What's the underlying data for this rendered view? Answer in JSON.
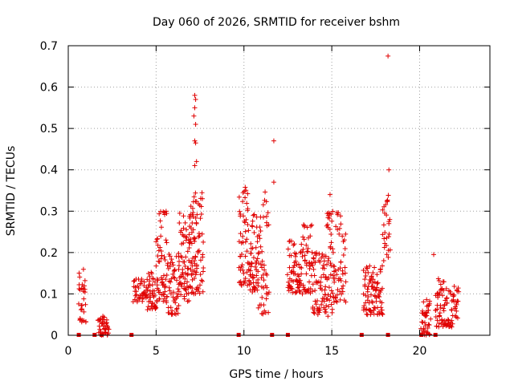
{
  "chart_data": {
    "type": "scatter",
    "title": "Day 060 of 2026, SRMTID for receiver bshm",
    "xlabel": "GPS time / hours",
    "ylabel": "SRMTID / TECUs",
    "xlim": [
      0,
      24
    ],
    "ylim": [
      0,
      0.7
    ],
    "xticks": [
      0,
      5,
      10,
      15,
      20
    ],
    "yticks": [
      0,
      0.1,
      0.2,
      0.3,
      0.4,
      0.5,
      0.6,
      0.7
    ],
    "xtick_labels": [
      "0",
      "5",
      "10",
      "15",
      "20"
    ],
    "ytick_labels": [
      "0",
      "0.1",
      "0.2",
      "0.3",
      "0.4",
      "0.5",
      "0.6",
      "0.7"
    ],
    "grid": true,
    "marker": "+",
    "marker_color": "#e00000",
    "zero_markers_x": [
      0.6,
      1.5,
      1.9,
      3.6,
      9.7,
      11.6,
      12.5,
      16.7,
      18.2,
      20.1,
      20.9
    ],
    "clusters": [
      {
        "x_start": 0.6,
        "x_end": 1.0,
        "y_min": 0.03,
        "y_max": 0.17,
        "count": 30
      },
      {
        "x_start": 1.7,
        "x_end": 2.3,
        "y_min": 0.0,
        "y_max": 0.05,
        "count": 40
      },
      {
        "x_start": 3.7,
        "x_end": 4.5,
        "y_min": 0.08,
        "y_max": 0.14,
        "count": 40
      },
      {
        "x_start": 4.5,
        "x_end": 5.0,
        "y_min": 0.06,
        "y_max": 0.16,
        "count": 40
      },
      {
        "x_start": 5.0,
        "x_end": 5.6,
        "y_min": 0.08,
        "y_max": 0.3,
        "count": 55
      },
      {
        "x_start": 5.6,
        "x_end": 6.3,
        "y_min": 0.05,
        "y_max": 0.2,
        "count": 55
      },
      {
        "x_start": 6.3,
        "x_end": 6.9,
        "y_min": 0.08,
        "y_max": 0.3,
        "count": 60
      },
      {
        "x_start": 6.9,
        "x_end": 7.3,
        "y_min": 0.1,
        "y_max": 0.35,
        "count": 55
      },
      {
        "x_start": 7.3,
        "x_end": 7.7,
        "y_min": 0.1,
        "y_max": 0.35,
        "count": 35
      },
      {
        "x_start": 9.7,
        "x_end": 10.3,
        "y_min": 0.12,
        "y_max": 0.38,
        "count": 55
      },
      {
        "x_start": 10.3,
        "x_end": 10.8,
        "y_min": 0.1,
        "y_max": 0.3,
        "count": 50
      },
      {
        "x_start": 10.8,
        "x_end": 11.4,
        "y_min": 0.05,
        "y_max": 0.35,
        "count": 50
      },
      {
        "x_start": 12.5,
        "x_end": 13.2,
        "y_min": 0.1,
        "y_max": 0.23,
        "count": 55
      },
      {
        "x_start": 13.2,
        "x_end": 13.9,
        "y_min": 0.1,
        "y_max": 0.28,
        "count": 55
      },
      {
        "x_start": 13.9,
        "x_end": 14.6,
        "y_min": 0.05,
        "y_max": 0.2,
        "count": 55
      },
      {
        "x_start": 14.6,
        "x_end": 15.1,
        "y_min": 0.04,
        "y_max": 0.3,
        "count": 55
      },
      {
        "x_start": 15.1,
        "x_end": 15.8,
        "y_min": 0.08,
        "y_max": 0.3,
        "count": 50
      },
      {
        "x_start": 16.8,
        "x_end": 17.4,
        "y_min": 0.05,
        "y_max": 0.17,
        "count": 50
      },
      {
        "x_start": 17.4,
        "x_end": 17.9,
        "y_min": 0.05,
        "y_max": 0.17,
        "count": 40
      },
      {
        "x_start": 17.9,
        "x_end": 18.3,
        "y_min": 0.18,
        "y_max": 0.35,
        "count": 25
      },
      {
        "x_start": 20.1,
        "x_end": 20.6,
        "y_min": 0.0,
        "y_max": 0.09,
        "count": 40
      },
      {
        "x_start": 20.9,
        "x_end": 21.4,
        "y_min": 0.02,
        "y_max": 0.14,
        "count": 40
      },
      {
        "x_start": 21.4,
        "x_end": 22.2,
        "y_min": 0.02,
        "y_max": 0.12,
        "count": 55
      }
    ],
    "outliers": [
      {
        "x": 7.2,
        "y": 0.58
      },
      {
        "x": 7.25,
        "y": 0.57
      },
      {
        "x": 7.2,
        "y": 0.55
      },
      {
        "x": 7.15,
        "y": 0.53
      },
      {
        "x": 7.25,
        "y": 0.51
      },
      {
        "x": 7.2,
        "y": 0.47
      },
      {
        "x": 7.25,
        "y": 0.465
      },
      {
        "x": 7.3,
        "y": 0.42
      },
      {
        "x": 7.2,
        "y": 0.41
      },
      {
        "x": 11.7,
        "y": 0.47
      },
      {
        "x": 11.7,
        "y": 0.37
      },
      {
        "x": 18.2,
        "y": 0.675
      },
      {
        "x": 18.25,
        "y": 0.4
      },
      {
        "x": 18.3,
        "y": 0.28
      },
      {
        "x": 18.25,
        "y": 0.27
      },
      {
        "x": 20.8,
        "y": 0.195
      },
      {
        "x": 14.9,
        "y": 0.34
      }
    ]
  }
}
